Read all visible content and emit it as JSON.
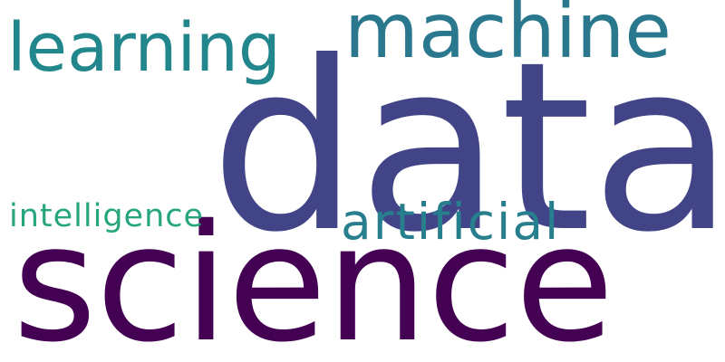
{
  "wordcloud": {
    "words": [
      {
        "text": "data",
        "color": "#414487"
      },
      {
        "text": "science",
        "color": "#440154"
      },
      {
        "text": "machine",
        "color": "#2a788e"
      },
      {
        "text": "learning",
        "color": "#22868d"
      },
      {
        "text": "artificial",
        "color": "#277f8e"
      },
      {
        "text": "intelligence",
        "color": "#27a57f"
      }
    ]
  }
}
